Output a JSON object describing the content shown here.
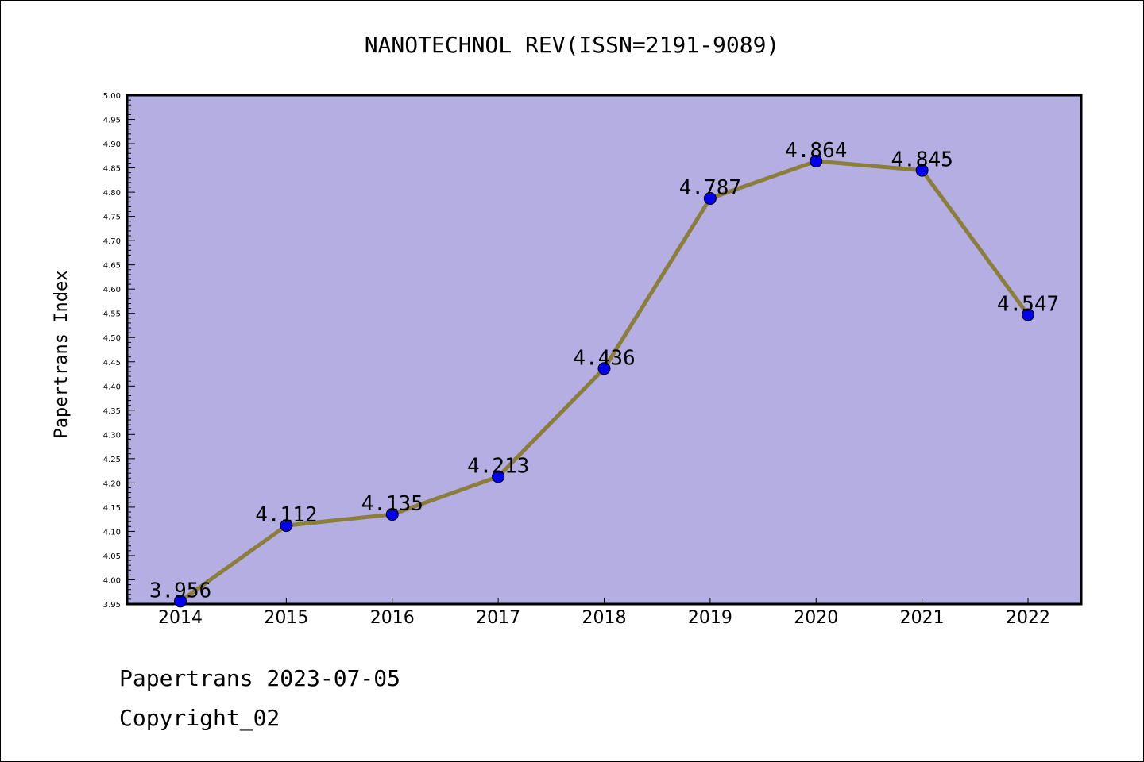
{
  "chart_data": {
    "type": "line",
    "title": "NANOTECHNOL REV(ISSN=2191-9089)",
    "xlabel": "",
    "ylabel": "Papertrans Index",
    "categories": [
      "2014",
      "2015",
      "2016",
      "2017",
      "2018",
      "2019",
      "2020",
      "2021",
      "2022"
    ],
    "values": [
      3.956,
      4.112,
      4.135,
      4.213,
      4.436,
      4.787,
      4.864,
      4.845,
      4.547
    ],
    "data_labels": [
      "3.956",
      "4.112",
      "4.135",
      "4.213",
      "4.436",
      "4.787",
      "4.864",
      "4.845",
      "4.547"
    ],
    "ylim": [
      3.95,
      5.0
    ],
    "y_ticks": [
      "3.95",
      "4.00",
      "4.05",
      "4.10",
      "4.15",
      "4.20",
      "4.25",
      "4.30",
      "4.35",
      "4.40",
      "4.45",
      "4.50",
      "4.55",
      "4.60",
      "4.65",
      "4.70",
      "4.75",
      "4.80",
      "4.85",
      "4.90",
      "4.95",
      "5.00"
    ],
    "grid": false,
    "colors": {
      "plot_background": "#b4aee2",
      "line": "#8b7d3a",
      "marker": "#0000ee"
    }
  },
  "footer": {
    "line1": "Papertrans 2023-07-05",
    "line2": "Copyright_02"
  }
}
